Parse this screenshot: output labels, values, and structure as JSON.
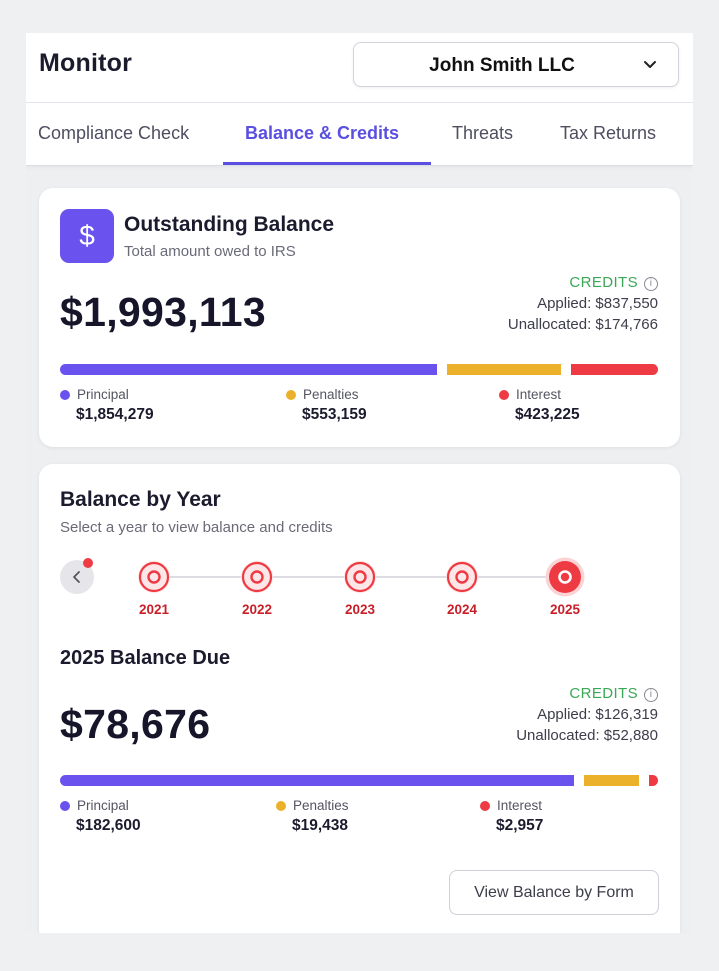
{
  "header": {
    "title": "Monitor",
    "company_select": {
      "value": "John Smith LLC"
    }
  },
  "tabs": [
    {
      "label": "Compliance Check",
      "active": false
    },
    {
      "label": "Balance & Credits",
      "active": true
    },
    {
      "label": "Threats",
      "active": false
    },
    {
      "label": "Tax Returns",
      "active": false
    }
  ],
  "outstanding": {
    "icon": "dollar-icon",
    "title": "Outstanding Balance",
    "subtitle": "Total amount owed to IRS",
    "amount": "$1,993,113",
    "credits": {
      "label": "CREDITS",
      "applied": "Applied: $837,550",
      "unallocated": "Unallocated: $174,766"
    },
    "breakdown": [
      {
        "label": "Principal",
        "value": "$1,854,279",
        "color": "#6a52ef"
      },
      {
        "label": "Penalties",
        "value": "$553,159",
        "color": "#ecb12b"
      },
      {
        "label": "Interest",
        "value": "$423,225",
        "color": "#ee3b43"
      }
    ]
  },
  "by_year": {
    "title": "Balance by Year",
    "subtitle": "Select a year to view balance and credits",
    "years": [
      "2021",
      "2022",
      "2023",
      "2024",
      "2025"
    ],
    "selected_year": "2025",
    "due_title": "2025 Balance Due",
    "amount": "$78,676",
    "credits": {
      "label": "CREDITS",
      "applied": "Applied: $126,319",
      "unallocated": "Unallocated: $52,880"
    },
    "breakdown": [
      {
        "label": "Principal",
        "value": "$182,600",
        "color": "#6a52ef"
      },
      {
        "label": "Penalties",
        "value": "$19,438",
        "color": "#ecb12b"
      },
      {
        "label": "Interest",
        "value": "$2,957",
        "color": "#ee3b43"
      }
    ],
    "view_by_form_label": "View Balance by Form"
  }
}
